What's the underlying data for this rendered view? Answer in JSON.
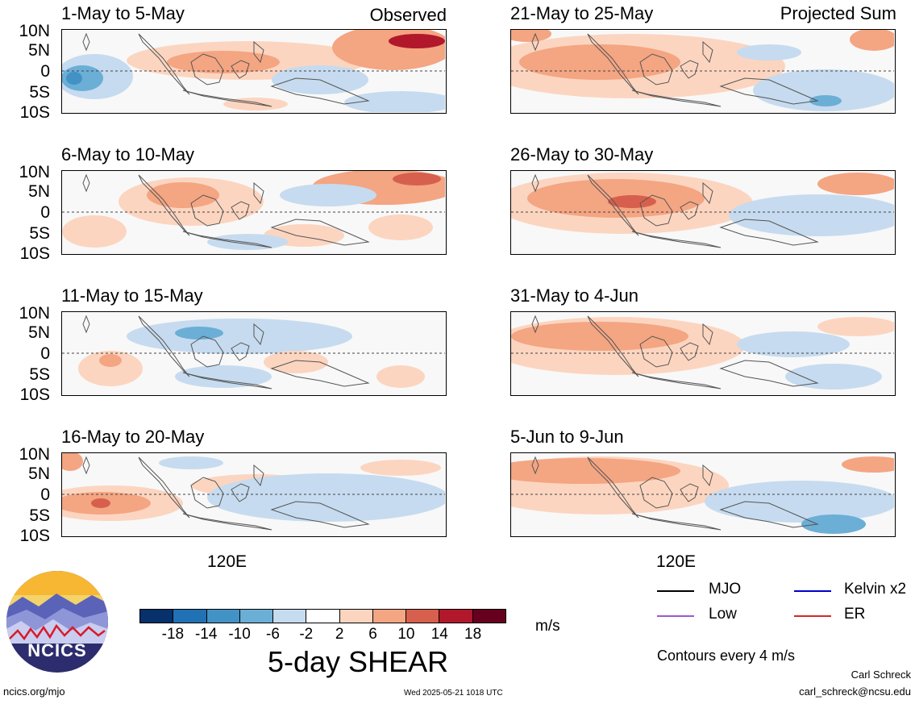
{
  "header": {
    "left_label": "Observed",
    "right_label": "Projected Sum"
  },
  "panels": [
    {
      "title": "1-May to 5-May"
    },
    {
      "title": "6-May to 10-May"
    },
    {
      "title": "11-May to 15-May"
    },
    {
      "title": "16-May to 20-May"
    },
    {
      "title": "21-May to 25-May"
    },
    {
      "title": "26-May to 30-May"
    },
    {
      "title": "31-May to 4-Jun"
    },
    {
      "title": "5-Jun to 9-Jun"
    }
  ],
  "lat_labels": [
    "10N",
    "5N",
    "0",
    "5S",
    "10S"
  ],
  "lon_label": "120E",
  "colorbar": {
    "colors": [
      "#08306b",
      "#2171b5",
      "#4292c6",
      "#6baed6",
      "#c6dbef",
      "#ffffff",
      "#fcd5c0",
      "#f4a582",
      "#d6604d",
      "#b2182b",
      "#67001f"
    ],
    "tick_labels": [
      "-18",
      "-14",
      "-10",
      "-6",
      "-2",
      "2",
      "6",
      "10",
      "14",
      "18"
    ],
    "units": "m/s",
    "title": "5-day SHEAR"
  },
  "legend": {
    "items": [
      {
        "label": "MJO",
        "color": "#000000"
      },
      {
        "label": "Kelvin x2",
        "color": "#0000cc"
      },
      {
        "label": "Low",
        "color": "#9b59d0"
      },
      {
        "label": "ER",
        "color": "#d62728"
      }
    ],
    "contour_note": "Contours every 4 m/s"
  },
  "logo": {
    "text": "NCICS"
  },
  "footer": {
    "url": "ncics.org/mjo",
    "timestamp": "Wed 2025-05-21 1018 UTC",
    "author": "Carl Schreck",
    "email": "carl_schreck@ncsu.edu"
  }
}
